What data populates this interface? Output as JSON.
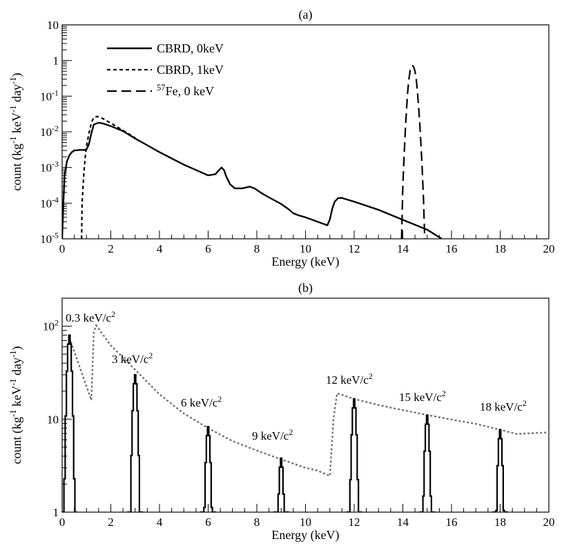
{
  "chart_data": [
    {
      "id": "a",
      "type": "line",
      "title": "(a)",
      "xlabel": "Energy (keV)",
      "ylabel": "count (kg^-1 keV^-1 day^-1)",
      "xlim": [
        0,
        20
      ],
      "ylim": [
        1e-05,
        10
      ],
      "yscale": "log",
      "x_ticks": [
        "0",
        "2",
        "4",
        "6",
        "8",
        "10",
        "12",
        "14",
        "16",
        "18",
        "20"
      ],
      "y_ticks": [
        "10^-5",
        "10^-4",
        "10^-3",
        "10^-2",
        "10^-1",
        "1",
        "10"
      ],
      "legend": [
        {
          "label": "CBRD, 0keV",
          "style": "solid"
        },
        {
          "label": "CBRD, 1keV",
          "style": "dotted"
        },
        {
          "label": "57Fe, 0 keV",
          "style": "dashed"
        }
      ],
      "series": [
        {
          "name": "CBRD, 0keV",
          "style": "solid",
          "x": [
            0.0,
            0.05,
            0.1,
            0.2,
            0.3,
            0.4,
            0.5,
            0.7,
            0.9,
            1.0,
            1.1,
            1.2,
            1.3,
            1.5,
            1.7,
            2.0,
            2.5,
            3.0,
            3.5,
            4.0,
            4.5,
            5.0,
            5.5,
            6.0,
            6.3,
            6.45,
            6.55,
            6.65,
            6.75,
            6.9,
            7.1,
            7.4,
            7.7,
            7.9,
            8.2,
            8.5,
            9.0,
            9.3,
            9.5,
            9.7,
            10.0,
            10.5,
            10.9,
            11.0,
            11.1,
            11.2,
            11.35,
            11.5,
            12.0,
            13.0,
            14.0,
            15.0,
            15.6
          ],
          "y": [
            1e-05,
            0.0001,
            0.0006,
            0.0015,
            0.0022,
            0.0027,
            0.003,
            0.0031,
            0.0031,
            0.0032,
            0.0045,
            0.009,
            0.016,
            0.018,
            0.017,
            0.0145,
            0.0105,
            0.0065,
            0.0042,
            0.0027,
            0.0018,
            0.0012,
            0.00085,
            0.0006,
            0.00065,
            0.00085,
            0.001,
            0.00085,
            0.00055,
            0.00034,
            0.00026,
            0.00026,
            0.00029,
            0.00026,
            0.00019,
            0.000145,
            9.5e-05,
            6.8e-05,
            5.2e-05,
            4.6e-05,
            4e-05,
            3e-05,
            2.4e-05,
            3.5e-05,
            7e-05,
            0.00011,
            0.00014,
            0.00014,
            0.00011,
            6.5e-05,
            3.4e-05,
            1.8e-05,
            1e-05
          ]
        },
        {
          "name": "CBRD, 1keV",
          "style": "dotted",
          "x": [
            0.8,
            0.82,
            0.9,
            0.95,
            1.0,
            1.1,
            1.2,
            1.3,
            1.45,
            1.6,
            1.8,
            2.0,
            2.5,
            3.0
          ],
          "y": [
            1e-05,
            0.0001,
            0.0008,
            0.002,
            0.004,
            0.009,
            0.018,
            0.025,
            0.027,
            0.025,
            0.021,
            0.0175,
            0.011,
            0.0068
          ]
        },
        {
          "name": "57Fe, 0 keV",
          "style": "dashed",
          "x": [
            13.95,
            14.0,
            14.05,
            14.1,
            14.15,
            14.2,
            14.25,
            14.3,
            14.35,
            14.4,
            14.45,
            14.5,
            14.55,
            14.6,
            14.65,
            14.7,
            14.75,
            14.8,
            14.85,
            14.9
          ],
          "y": [
            1e-05,
            0.0003,
            0.002,
            0.01,
            0.04,
            0.13,
            0.3,
            0.52,
            0.68,
            0.72,
            0.65,
            0.5,
            0.3,
            0.14,
            0.05,
            0.015,
            0.004,
            0.0008,
            0.00012,
            1e-05
          ]
        }
      ]
    },
    {
      "id": "b",
      "type": "line",
      "title": "(b)",
      "xlabel": "Energy (keV)",
      "ylabel": "count (kg^-1 keV^-1 day^-1)",
      "xlim": [
        0,
        20
      ],
      "ylim": [
        1,
        200
      ],
      "yscale": "log",
      "x_ticks": [
        "0",
        "2",
        "4",
        "6",
        "8",
        "10",
        "12",
        "14",
        "16",
        "18",
        "20"
      ],
      "y_ticks": [
        "1",
        "10",
        "10^2"
      ],
      "envelope": {
        "name": "envelope",
        "style": "gray-dotted",
        "x": [
          0.3,
          1.2,
          1.3,
          1.4,
          2.0,
          3.0,
          4.0,
          5.0,
          6.0,
          7.0,
          8.0,
          9.0,
          10.0,
          10.5,
          11.0,
          11.15,
          11.3,
          12.0,
          13.0,
          14.0,
          15.0,
          16.0,
          17.0,
          18.0,
          18.7,
          19.0,
          20.0
        ],
        "y": [
          75,
          16,
          85,
          102,
          62,
          34,
          18.5,
          11.5,
          8.0,
          5.8,
          4.6,
          3.7,
          3.0,
          2.8,
          2.45,
          10,
          19,
          16.5,
          14.2,
          12.5,
          11.1,
          9.9,
          8.9,
          7.7,
          6.9,
          7.0,
          7.2
        ]
      },
      "peaks": [
        {
          "label": "0.3 keV/c^2",
          "mass": 0.3,
          "center": 0.3,
          "height": 80
        },
        {
          "label": "3 keV/c^2",
          "mass": 3,
          "center": 3.0,
          "height": 30
        },
        {
          "label": "6 keV/c^2",
          "mass": 6,
          "center": 6.0,
          "height": 8.3
        },
        {
          "label": "9 keV/c^2",
          "mass": 9,
          "center": 9.0,
          "height": 3.8
        },
        {
          "label": "12 keV/c^2",
          "mass": 12,
          "center": 12.0,
          "height": 16.5
        },
        {
          "label": "15 keV/c^2",
          "mass": 15,
          "center": 15.0,
          "height": 11
        },
        {
          "label": "18 keV/c^2",
          "mass": 18,
          "center": 18.0,
          "height": 7.7
        }
      ]
    }
  ]
}
